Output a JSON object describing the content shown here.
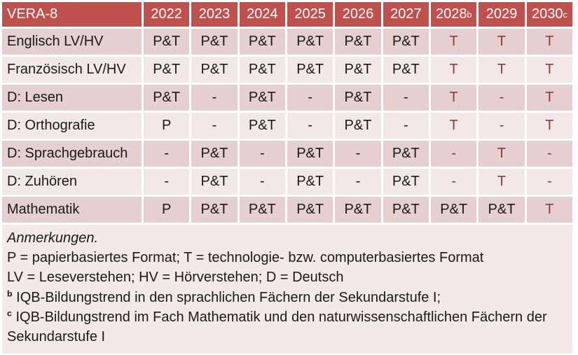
{
  "colors": {
    "header_bg": "#c0504d",
    "header_text": "#ffffff",
    "row_odd_bg": "#e5cfcf",
    "row_even_bg": "#f2e8e8",
    "notes_bg": "#f3e9e9",
    "accent_text": "#963634",
    "body_text": "#1a1a1a"
  },
  "table": {
    "corner_label": "VERA-8",
    "years": [
      {
        "label": "2022",
        "sup": ""
      },
      {
        "label": "2023",
        "sup": ""
      },
      {
        "label": "2024",
        "sup": ""
      },
      {
        "label": "2025",
        "sup": ""
      },
      {
        "label": "2026",
        "sup": ""
      },
      {
        "label": "2027",
        "sup": ""
      },
      {
        "label": "2028",
        "sup": "b"
      },
      {
        "label": "2029",
        "sup": ""
      },
      {
        "label": "2030",
        "sup": "c"
      }
    ],
    "rows": [
      {
        "label": "Englisch LV/HV",
        "cells": [
          "P&T",
          "P&T",
          "P&T",
          "P&T",
          "P&T",
          "P&T",
          "T",
          "T",
          "T"
        ]
      },
      {
        "label": "Französisch LV/HV",
        "cells": [
          "P&T",
          "P&T",
          "P&T",
          "P&T",
          "P&T",
          "P&T",
          "T",
          "T",
          "T"
        ]
      },
      {
        "label": "D: Lesen",
        "cells": [
          "P&T",
          "-",
          "P&T",
          "-",
          "P&T",
          "-",
          "T",
          "-",
          "T"
        ]
      },
      {
        "label": "D: Orthografie",
        "cells": [
          "P",
          "-",
          "P&T",
          "-",
          "P&T",
          "-",
          "T",
          "-",
          "T"
        ]
      },
      {
        "label": "D: Sprachgebrauch",
        "cells": [
          "-",
          "P&T",
          "-",
          "P&T",
          "-",
          "P&T",
          "-",
          "T",
          "-"
        ]
      },
      {
        "label": "D: Zuhören",
        "cells": [
          "-",
          "P&T",
          "-",
          "P&T",
          "-",
          "P&T",
          "-",
          "T",
          "-"
        ]
      },
      {
        "label": "Mathematik",
        "cells": [
          "P",
          "P&T",
          "P&T",
          "P&T",
          "P&T",
          "P&T",
          "P&T",
          "P&T",
          "T"
        ]
      }
    ]
  },
  "notes": {
    "heading": "Anmerkungen.",
    "line_formats": "P = papierbasiertes Format; T = technologie- bzw. computerbasiertes Format",
    "line_abbrev": "LV = Leseverstehen; HV = Hörverstehen; D = Deutsch",
    "note_b_sup": "b",
    "note_b": "IQB-Bildungstrend in den sprachlichen Fächern der Sekundarstufe I;",
    "note_c_sup": "c",
    "note_c": "IQB-Bildungstrend im Fach Mathematik und den naturwissenschaftlichen Fächern der Sekundarstufe I"
  }
}
